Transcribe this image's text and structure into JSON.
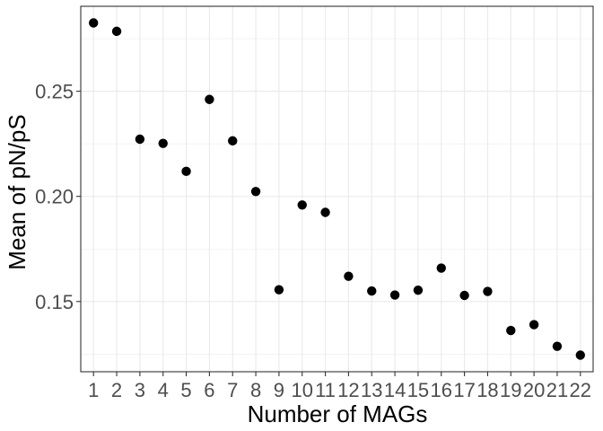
{
  "chart_data": {
    "type": "scatter",
    "title": "",
    "xlabel": "Number of MAGs",
    "ylabel": "Mean of pN/pS",
    "x": [
      1,
      2,
      3,
      4,
      5,
      6,
      7,
      8,
      9,
      10,
      11,
      12,
      13,
      14,
      15,
      16,
      17,
      18,
      19,
      20,
      21,
      22
    ],
    "y": [
      0.2825,
      0.2785,
      0.2272,
      0.2252,
      0.2119,
      0.2461,
      0.2264,
      0.2023,
      0.1556,
      0.1959,
      0.1924,
      0.162,
      0.155,
      0.1531,
      0.1554,
      0.1659,
      0.1529,
      0.1548,
      0.1362,
      0.139,
      0.1287,
      0.1245
    ],
    "xticks": [
      "1",
      "2",
      "3",
      "4",
      "5",
      "6",
      "7",
      "8",
      "9",
      "10",
      "11",
      "12",
      "13",
      "14",
      "15",
      "16",
      "17",
      "18",
      "19",
      "20",
      "21",
      "22"
    ],
    "yticks": [
      0.15,
      0.2,
      0.25
    ],
    "ytick_labels": [
      "0.15",
      "0.20",
      "0.25"
    ],
    "xlim": [
      0.45,
      22.55
    ],
    "ylim": [
      0.1166,
      0.2904
    ],
    "grid": true,
    "legend": "none",
    "point_color": "#000000",
    "grid_color": "#ebebeb",
    "panel_border_color": "#333333"
  }
}
